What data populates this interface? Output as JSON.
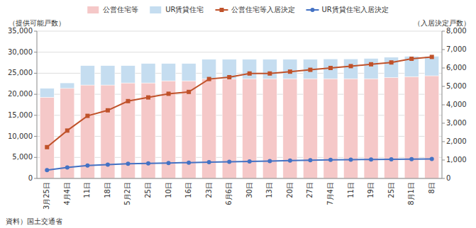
{
  "chart_data": {
    "type": "bar",
    "categories": [
      "3月25日",
      "4月4日",
      "11日",
      "18日",
      "5月2日",
      "25日",
      "10日",
      "16日",
      "23日",
      "6月6日",
      "30日",
      "13日",
      "20日",
      "27日",
      "7月4日",
      "11日",
      "19日",
      "25日",
      "8月1日",
      "8日"
    ],
    "series": [
      {
        "name": "公営住宅等",
        "type": "bar",
        "color": "#f5c8c8",
        "values": [
          19300,
          21400,
          22200,
          22200,
          22700,
          22700,
          23200,
          23200,
          23700,
          23700,
          23700,
          23700,
          23700,
          23700,
          23700,
          23700,
          23700,
          24000,
          24200,
          24400
        ]
      },
      {
        "name": "UR賃貸住宅",
        "type": "bar",
        "color": "#c5ddf0",
        "values": [
          2100,
          1300,
          4600,
          4600,
          4100,
          4600,
          4100,
          4100,
          4600,
          4600,
          4600,
          4600,
          4600,
          4600,
          4700,
          4700,
          4800,
          4800,
          4800,
          4600
        ]
      },
      {
        "name": "公営住宅等入居決定",
        "type": "line",
        "axis": "y2",
        "color": "#c0522a",
        "marker": "square",
        "values": [
          1700,
          2600,
          3400,
          3700,
          4200,
          4400,
          4600,
          4700,
          5400,
          5500,
          5700,
          5700,
          5800,
          5900,
          6000,
          6100,
          6200,
          6300,
          6500,
          6600
        ]
      },
      {
        "name": "UR賃貸住宅入居決定",
        "type": "line",
        "axis": "y2",
        "color": "#4472c4",
        "marker": "circle",
        "values": [
          450,
          600,
          700,
          750,
          800,
          820,
          840,
          860,
          880,
          900,
          920,
          940,
          970,
          990,
          1010,
          1020,
          1030,
          1040,
          1050,
          1060
        ]
      }
    ],
    "stacked": true,
    "y_label": "（提供可能戸数）",
    "y2_label": "（入居決定戸数）",
    "source": "資料）国土交通省",
    "ylim": [
      0,
      35000
    ],
    "yticks": [
      0,
      {
        "value": 5000,
        "label": "5,000"
      },
      {
        "value": 10000,
        "label": "10,000"
      },
      {
        "value": 15000,
        "label": "15,000"
      },
      {
        "value": 20000,
        "label": "20,000"
      },
      {
        "value": 25000,
        "label": "25,000"
      },
      {
        "value": 30000,
        "label": "30,000"
      },
      {
        "value": 35000,
        "label": "35,000"
      }
    ],
    "y2lim": [
      0,
      8000
    ],
    "y2ticks": [
      0,
      {
        "value": 1000,
        "label": "1,000"
      },
      {
        "value": 2000,
        "label": "2,000"
      },
      {
        "value": 3000,
        "label": "3,000"
      },
      {
        "value": 4000,
        "label": "4,000"
      },
      {
        "value": 5000,
        "label": "5,000"
      },
      {
        "value": 6000,
        "label": "6,000"
      },
      {
        "value": 7000,
        "label": "7,000"
      },
      {
        "value": 8000,
        "label": "8,000"
      }
    ],
    "grid": true,
    "legend": "top"
  }
}
